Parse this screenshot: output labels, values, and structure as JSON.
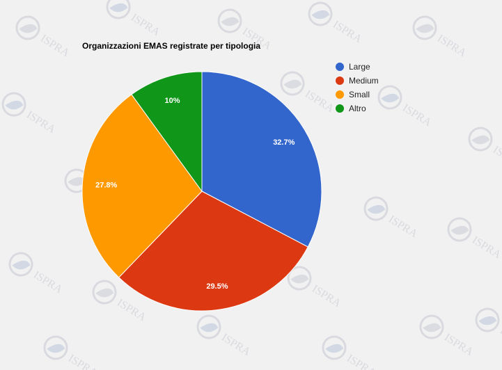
{
  "chart_data": {
    "type": "pie",
    "title": "Organizzazioni EMAS registrate per tipologia",
    "slices": [
      {
        "label": "Large",
        "value": 32.7,
        "display": "32.7%",
        "color": "#3366cc"
      },
      {
        "label": "Medium",
        "value": 29.5,
        "display": "29.5%",
        "color": "#dc3912"
      },
      {
        "label": "Small",
        "value": 27.8,
        "display": "27.8%",
        "color": "#ff9900"
      },
      {
        "label": "Altro",
        "value": 10.0,
        "display": "10%",
        "color": "#109618"
      }
    ],
    "start_angle": "12 o'clock",
    "direction": "clockwise",
    "legend_position": "right"
  },
  "watermark": {
    "text": "ISPRA",
    "color": "#c7c9d2"
  }
}
